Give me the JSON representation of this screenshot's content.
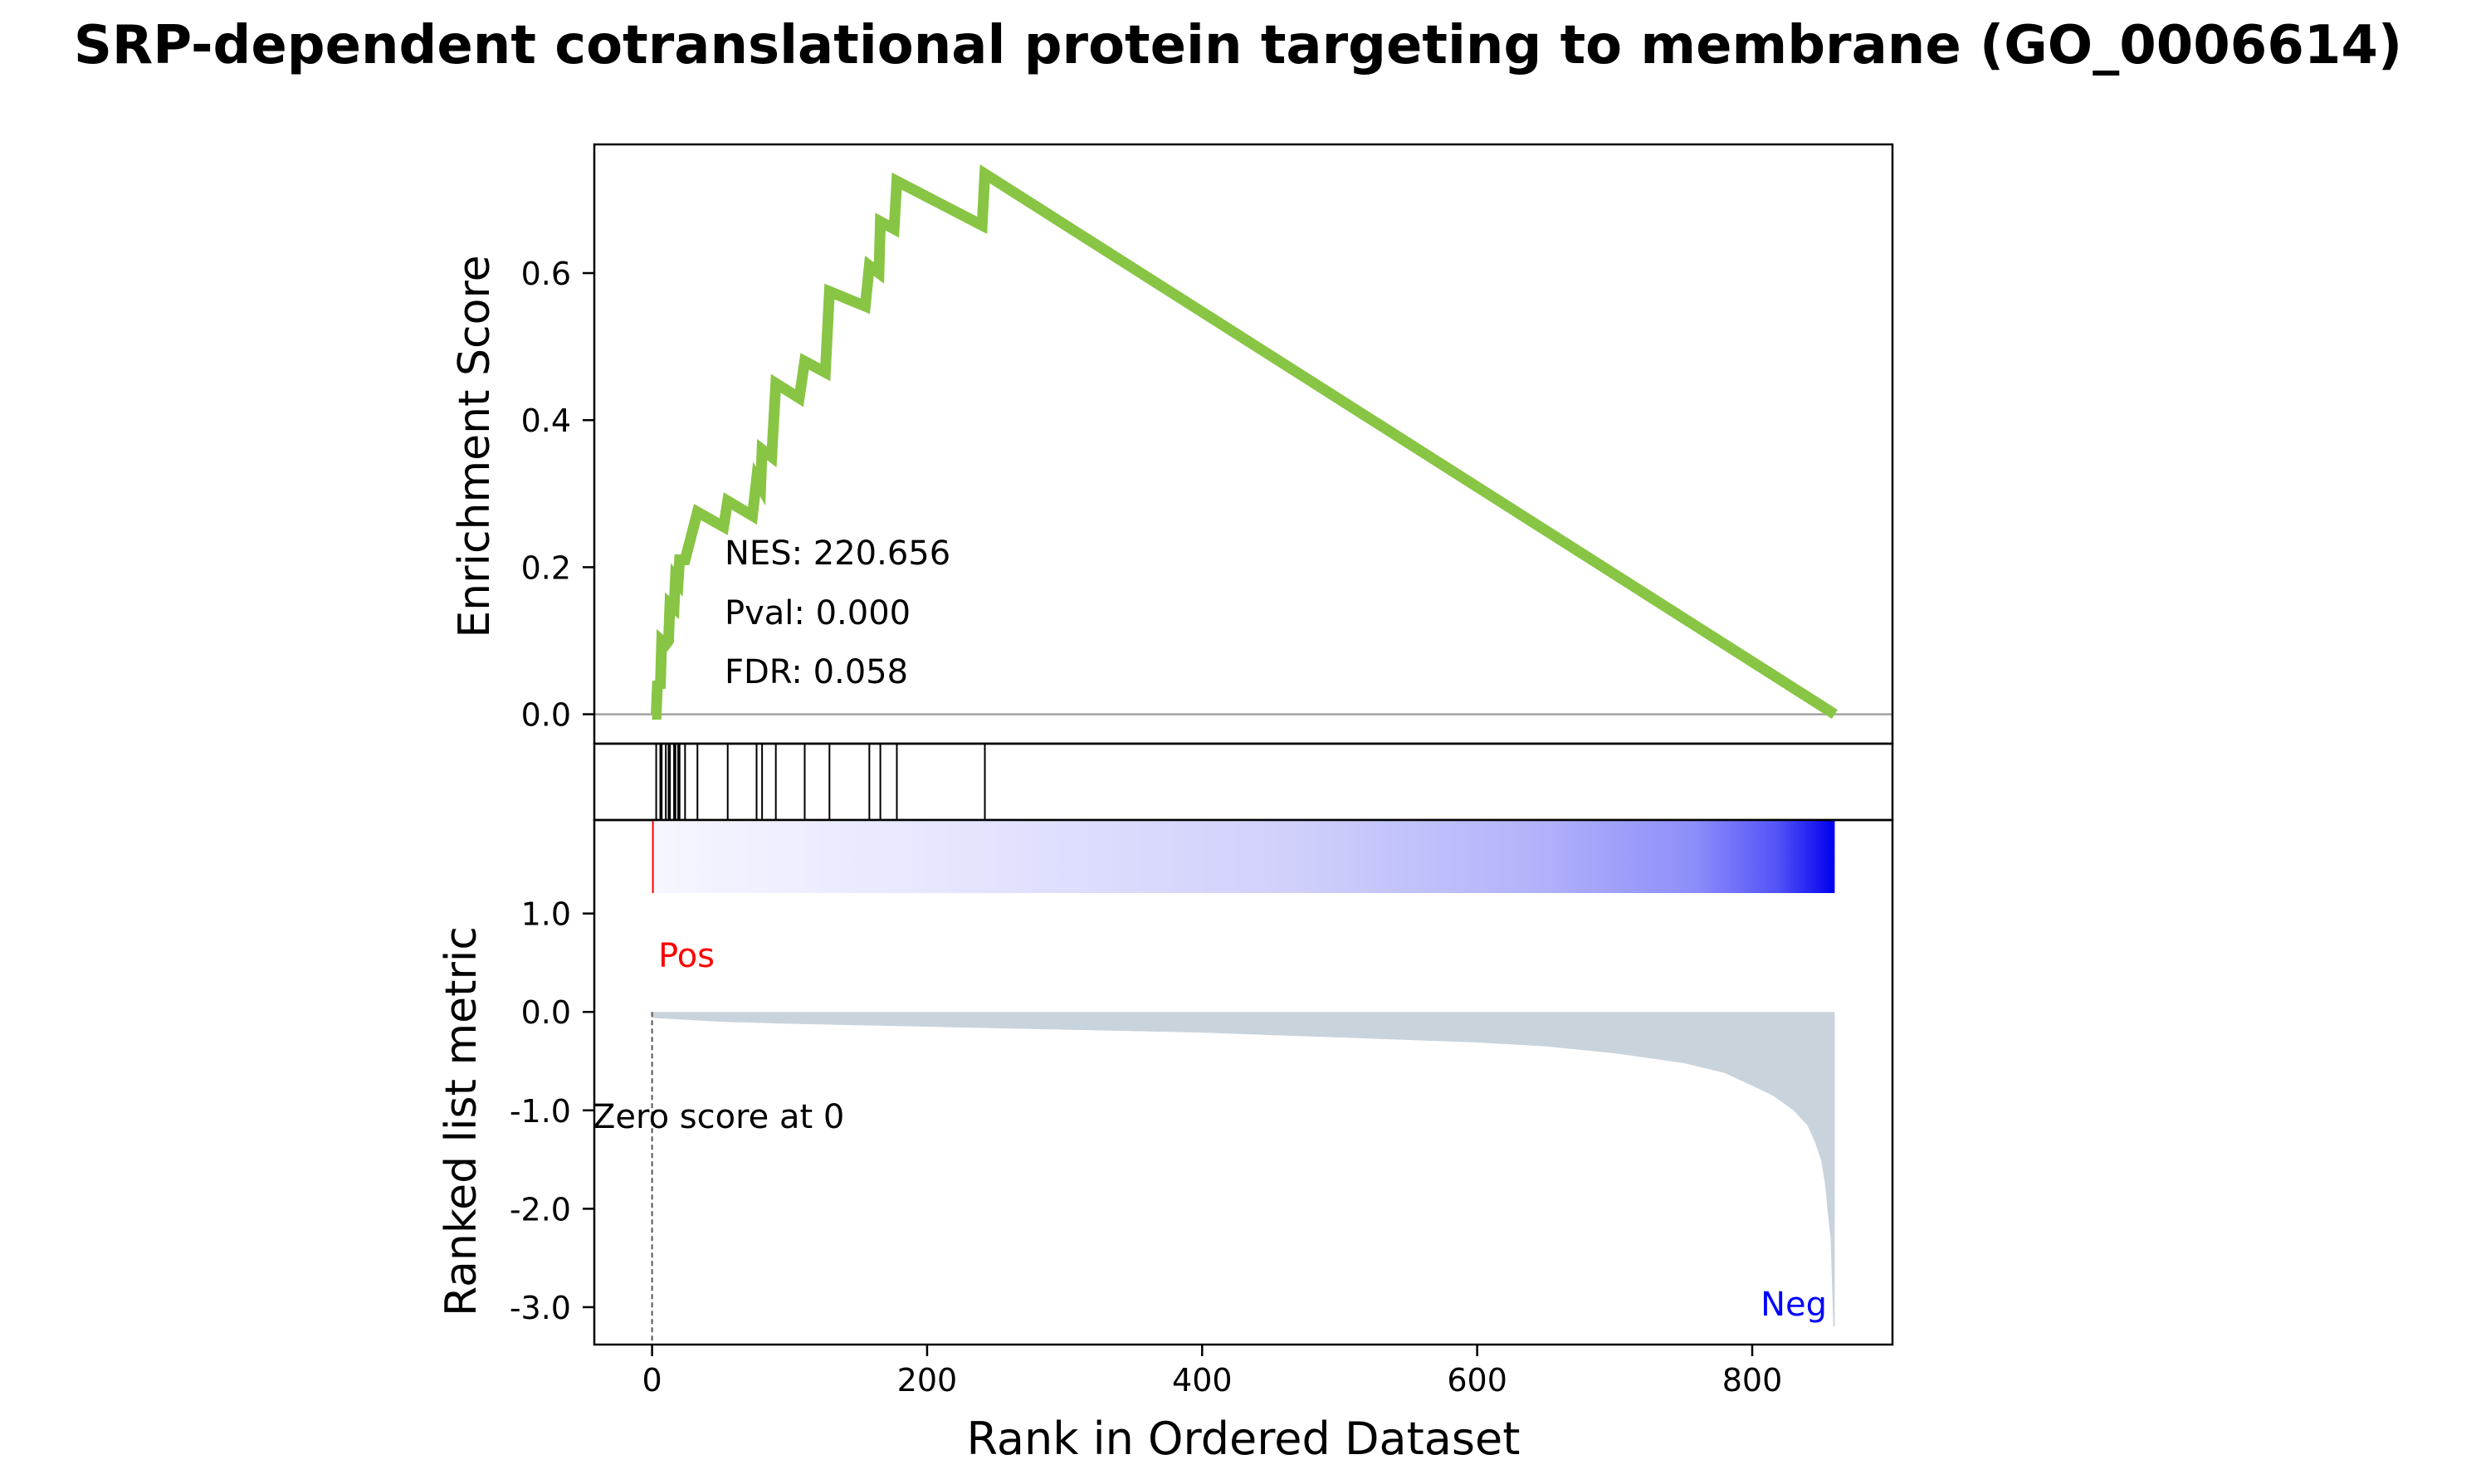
{
  "title": "SRP-dependent cotranslational protein targeting to membrane (GO_0006614)",
  "chart_data": {
    "type": "line",
    "n_genes": 860,
    "xlabel": "Rank in Ordered Dataset",
    "xlim": [
      -42,
      902
    ],
    "xticks": [
      0,
      200,
      400,
      600,
      800
    ],
    "xtick_labels": [
      "0",
      "200",
      "400",
      "600",
      "800"
    ],
    "es_panel": {
      "ylabel": "Enrichment Score",
      "ylim": [
        -0.04,
        0.775
      ],
      "yticks": [
        0.0,
        0.2,
        0.4,
        0.6
      ],
      "ytick_labels": [
        "0.0",
        "0.2",
        "0.4",
        "0.6"
      ],
      "line_color": "#88C544",
      "zero_line_color": "#a0a0a0",
      "annotations": [
        "NES: 220.656",
        "Pval: 0.000",
        "FDR: 0.058"
      ],
      "running_es": [
        [
          0,
          0.0
        ],
        [
          3,
          0.0
        ],
        [
          4,
          0.045
        ],
        [
          6,
          0.035
        ],
        [
          7,
          0.1
        ],
        [
          10,
          0.095
        ],
        [
          12,
          0.1
        ],
        [
          13,
          0.15
        ],
        [
          16,
          0.145
        ],
        [
          17,
          0.185
        ],
        [
          19,
          0.18
        ],
        [
          20,
          0.21
        ],
        [
          24,
          0.21
        ],
        [
          33,
          0.275
        ],
        [
          52,
          0.255
        ],
        [
          55,
          0.29
        ],
        [
          73,
          0.27
        ],
        [
          76,
          0.32
        ],
        [
          79,
          0.31
        ],
        [
          80,
          0.36
        ],
        [
          87,
          0.35
        ],
        [
          90,
          0.45
        ],
        [
          107,
          0.43
        ],
        [
          111,
          0.48
        ],
        [
          126,
          0.465
        ],
        [
          129,
          0.575
        ],
        [
          155,
          0.555
        ],
        [
          158,
          0.61
        ],
        [
          165,
          0.6
        ],
        [
          166,
          0.67
        ],
        [
          176,
          0.66
        ],
        [
          178,
          0.725
        ],
        [
          240,
          0.665
        ],
        [
          242,
          0.735
        ],
        [
          860,
          0.0
        ]
      ]
    },
    "hits_panel": {
      "hit_ranks": [
        3,
        6,
        7,
        10,
        12,
        13,
        16,
        17,
        19,
        20,
        24,
        33,
        55,
        76,
        80,
        90,
        111,
        129,
        158,
        166,
        178,
        242
      ],
      "line_color": "#000000"
    },
    "metric_panel": {
      "ylabel": "Ranked list metric",
      "ylim": [
        -3.38,
        1.95
      ],
      "yticks": [
        1.0,
        0.0,
        -1.0,
        -2.0,
        -3.0
      ],
      "ytick_labels": [
        "1.0",
        "0.0",
        "-1.0",
        "-2.0",
        "-3.0"
      ],
      "fill_color": "#C9D3DC",
      "pos_label": "Pos",
      "neg_label": "Neg",
      "pos_color": "#ff0000",
      "neg_color": "#0000ff",
      "zero_label": "Zero score at 0",
      "zero_cross_rank": 0,
      "heat_colors": [
        "#ffffff",
        "#0000ff"
      ],
      "metric_curve": [
        [
          0,
          -0.06
        ],
        [
          50,
          -0.1
        ],
        [
          100,
          -0.12
        ],
        [
          200,
          -0.15
        ],
        [
          300,
          -0.18
        ],
        [
          400,
          -0.21
        ],
        [
          500,
          -0.26
        ],
        [
          600,
          -0.31
        ],
        [
          650,
          -0.35
        ],
        [
          700,
          -0.42
        ],
        [
          750,
          -0.52
        ],
        [
          780,
          -0.62
        ],
        [
          800,
          -0.75
        ],
        [
          815,
          -0.85
        ],
        [
          830,
          -1.0
        ],
        [
          840,
          -1.15
        ],
        [
          845,
          -1.3
        ],
        [
          850,
          -1.5
        ],
        [
          853,
          -1.75
        ],
        [
          855,
          -2.05
        ],
        [
          857,
          -2.3
        ],
        [
          859,
          -3.2
        ],
        [
          860,
          -3.2
        ]
      ]
    }
  }
}
